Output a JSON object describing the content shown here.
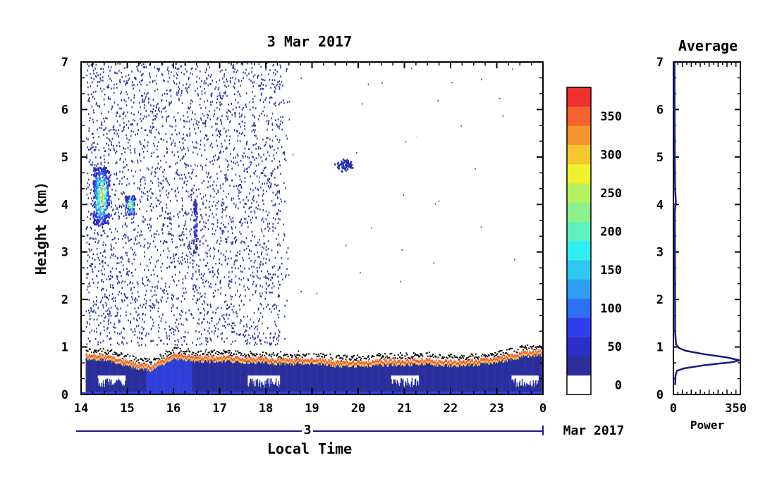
{
  "chart_data": [
    {
      "type": "heatmap",
      "title": "3 Mar 2017",
      "ylabel": "Height (km)",
      "xlabel": "Local Time",
      "date_axis": {
        "day_label": "3",
        "month_label": "Mar 2017"
      },
      "xlim": [
        14,
        24
      ],
      "ylim": [
        0,
        7
      ],
      "x_ticks": [
        "14",
        "15",
        "16",
        "17",
        "18",
        "19",
        "20",
        "21",
        "22",
        "23",
        "0"
      ],
      "y_ticks": [
        "0",
        "1",
        "2",
        "3",
        "4",
        "5",
        "6",
        "7"
      ],
      "colorbar": {
        "ticks": [
          "0",
          "50",
          "100",
          "150",
          "200",
          "250",
          "300",
          "350"
        ],
        "levels": [
          0,
          25,
          50,
          75,
          100,
          125,
          150,
          175,
          200,
          225,
          250,
          275,
          300,
          325,
          350,
          375
        ],
        "colors": [
          "#ffffff",
          "#2a2f9c",
          "#2a2fc8",
          "#2f3ff0",
          "#2f6ff5",
          "#2f9df5",
          "#2fc8f0",
          "#2ff0f0",
          "#5ff0c0",
          "#8cf08c",
          "#b4f060",
          "#f0f02f",
          "#f5c82f",
          "#f5962f",
          "#f5642f",
          "#f02f2f"
        ]
      },
      "features": {
        "boundary_layer_top_km": [
          [
            14.0,
            0.88
          ],
          [
            14.5,
            0.85
          ],
          [
            15.0,
            0.72
          ],
          [
            15.5,
            0.62
          ],
          [
            16.0,
            0.88
          ],
          [
            16.5,
            0.82
          ],
          [
            17.0,
            0.82
          ],
          [
            17.5,
            0.8
          ],
          [
            18.0,
            0.78
          ],
          [
            18.5,
            0.76
          ],
          [
            19.0,
            0.78
          ],
          [
            19.5,
            0.72
          ],
          [
            20.0,
            0.72
          ],
          [
            20.5,
            0.74
          ],
          [
            21.0,
            0.74
          ],
          [
            21.5,
            0.76
          ],
          [
            22.0,
            0.72
          ],
          [
            22.5,
            0.74
          ],
          [
            23.0,
            0.8
          ],
          [
            23.5,
            0.9
          ],
          [
            24.0,
            0.95
          ]
        ],
        "noise_region_x": [
          14.1,
          18.5
        ],
        "cloud_patches": [
          {
            "x": [
              14.25,
              14.6
            ],
            "y": [
              3.6,
              4.8
            ],
            "peak": 375
          },
          {
            "x": [
              14.95,
              15.15
            ],
            "y": [
              3.8,
              4.2
            ],
            "peak": 375
          },
          {
            "x": [
              16.42,
              16.5
            ],
            "y": [
              3.0,
              4.2
            ],
            "peak": 150
          },
          {
            "x": [
              19.45,
              19.9
            ],
            "y": [
              4.7,
              5.0
            ],
            "peak": 100
          },
          {
            "x": [
              21.15,
              21.3
            ],
            "y": [
              5.4,
              5.5
            ],
            "peak": 50
          }
        ]
      }
    },
    {
      "type": "line",
      "title": "Average",
      "xlabel": "Power",
      "ylabel": "",
      "xlim": [
        0,
        375
      ],
      "ylim": [
        0,
        7
      ],
      "x_ticks": [
        "0",
        "350"
      ],
      "y_ticks": [
        "0",
        "1",
        "2",
        "3",
        "4",
        "5",
        "6",
        "7"
      ],
      "series": [
        {
          "x": [
            10,
            12,
            20,
            60,
            180,
            330,
            370,
            300,
            170,
            70,
            30,
            15,
            10,
            9,
            8,
            10,
            14,
            10,
            8,
            7,
            6
          ],
          "y": [
            0.2,
            0.4,
            0.5,
            0.55,
            0.62,
            0.68,
            0.72,
            0.78,
            0.85,
            0.92,
            0.98,
            1.05,
            1.3,
            2.5,
            3.8,
            3.95,
            4.05,
            4.3,
            4.9,
            5.5,
            7.0
          ],
          "color": "#1a1a8c"
        }
      ]
    }
  ]
}
